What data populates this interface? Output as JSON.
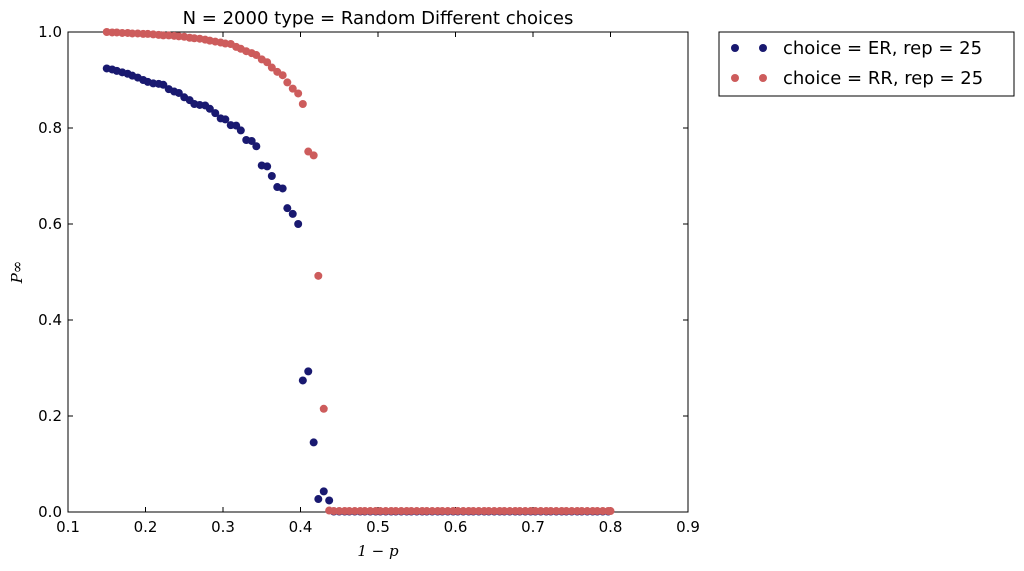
{
  "chart_data": {
    "type": "scatter",
    "title": "N = 2000 type = Random Different choices",
    "xlabel": "1 − p",
    "ylabel": "P∞",
    "xlim": [
      0.1,
      0.9
    ],
    "ylim": [
      0.0,
      1.0
    ],
    "xticks": [
      "0.1",
      "0.2",
      "0.3",
      "0.4",
      "0.5",
      "0.6",
      "0.7",
      "0.8",
      "0.9"
    ],
    "yticks": [
      "0.0",
      "0.2",
      "0.4",
      "0.6",
      "0.8",
      "1.0"
    ],
    "legend_position": "outside-top-right",
    "grid": false,
    "series": [
      {
        "name": "choice = ER, rep = 25",
        "color": "#191970",
        "points": [
          [
            0.15,
            0.924
          ],
          [
            0.157,
            0.922
          ],
          [
            0.163,
            0.919
          ],
          [
            0.17,
            0.916
          ],
          [
            0.177,
            0.913
          ],
          [
            0.183,
            0.909
          ],
          [
            0.19,
            0.905
          ],
          [
            0.197,
            0.9
          ],
          [
            0.203,
            0.896
          ],
          [
            0.21,
            0.893
          ],
          [
            0.217,
            0.892
          ],
          [
            0.223,
            0.89
          ],
          [
            0.23,
            0.881
          ],
          [
            0.237,
            0.876
          ],
          [
            0.243,
            0.873
          ],
          [
            0.25,
            0.864
          ],
          [
            0.257,
            0.858
          ],
          [
            0.263,
            0.85
          ],
          [
            0.27,
            0.848
          ],
          [
            0.277,
            0.847
          ],
          [
            0.283,
            0.84
          ],
          [
            0.29,
            0.831
          ],
          [
            0.297,
            0.82
          ],
          [
            0.303,
            0.818
          ],
          [
            0.31,
            0.806
          ],
          [
            0.317,
            0.805
          ],
          [
            0.323,
            0.795
          ],
          [
            0.33,
            0.775
          ],
          [
            0.337,
            0.773
          ],
          [
            0.343,
            0.762
          ],
          [
            0.35,
            0.722
          ],
          [
            0.357,
            0.72
          ],
          [
            0.363,
            0.7
          ],
          [
            0.37,
            0.677
          ],
          [
            0.377,
            0.674
          ],
          [
            0.383,
            0.633
          ],
          [
            0.39,
            0.621
          ],
          [
            0.397,
            0.6
          ],
          [
            0.403,
            0.274
          ],
          [
            0.41,
            0.293
          ],
          [
            0.417,
            0.145
          ],
          [
            0.423,
            0.027
          ],
          [
            0.43,
            0.043
          ],
          [
            0.437,
            0.024
          ],
          [
            0.443,
            0.001
          ],
          [
            0.45,
            0.001
          ],
          [
            0.457,
            0.001
          ],
          [
            0.463,
            0.001
          ],
          [
            0.47,
            0.001
          ],
          [
            0.477,
            0.001
          ],
          [
            0.483,
            0.001
          ],
          [
            0.49,
            0.001
          ],
          [
            0.497,
            0.001
          ],
          [
            0.503,
            0.001
          ],
          [
            0.51,
            0.001
          ],
          [
            0.517,
            0.001
          ],
          [
            0.523,
            0.001
          ],
          [
            0.53,
            0.001
          ],
          [
            0.537,
            0.001
          ],
          [
            0.543,
            0.001
          ],
          [
            0.55,
            0.001
          ],
          [
            0.557,
            0.001
          ],
          [
            0.563,
            0.001
          ],
          [
            0.57,
            0.001
          ],
          [
            0.577,
            0.001
          ],
          [
            0.583,
            0.001
          ],
          [
            0.59,
            0.001
          ],
          [
            0.597,
            0.001
          ],
          [
            0.603,
            0.001
          ],
          [
            0.61,
            0.001
          ],
          [
            0.617,
            0.001
          ],
          [
            0.623,
            0.001
          ],
          [
            0.63,
            0.001
          ],
          [
            0.637,
            0.001
          ],
          [
            0.643,
            0.001
          ],
          [
            0.65,
            0.001
          ],
          [
            0.657,
            0.001
          ],
          [
            0.663,
            0.001
          ],
          [
            0.67,
            0.001
          ],
          [
            0.677,
            0.001
          ],
          [
            0.683,
            0.001
          ],
          [
            0.69,
            0.001
          ],
          [
            0.697,
            0.001
          ],
          [
            0.703,
            0.001
          ],
          [
            0.71,
            0.001
          ],
          [
            0.717,
            0.001
          ],
          [
            0.723,
            0.001
          ],
          [
            0.73,
            0.001
          ],
          [
            0.737,
            0.001
          ],
          [
            0.743,
            0.001
          ],
          [
            0.75,
            0.001
          ],
          [
            0.757,
            0.001
          ],
          [
            0.763,
            0.001
          ],
          [
            0.77,
            0.001
          ],
          [
            0.777,
            0.001
          ],
          [
            0.783,
            0.001
          ],
          [
            0.79,
            0.001
          ],
          [
            0.797,
            0.001
          ]
        ]
      },
      {
        "name": "choice = RR, rep = 25",
        "color": "#CD5C5C",
        "points": [
          [
            0.15,
            1.0
          ],
          [
            0.157,
            0.999
          ],
          [
            0.163,
            0.999
          ],
          [
            0.17,
            0.998
          ],
          [
            0.177,
            0.998
          ],
          [
            0.183,
            0.997
          ],
          [
            0.19,
            0.997
          ],
          [
            0.197,
            0.996
          ],
          [
            0.203,
            0.996
          ],
          [
            0.21,
            0.995
          ],
          [
            0.217,
            0.994
          ],
          [
            0.223,
            0.993
          ],
          [
            0.23,
            0.993
          ],
          [
            0.237,
            0.992
          ],
          [
            0.243,
            0.991
          ],
          [
            0.25,
            0.99
          ],
          [
            0.257,
            0.988
          ],
          [
            0.263,
            0.987
          ],
          [
            0.27,
            0.986
          ],
          [
            0.277,
            0.984
          ],
          [
            0.283,
            0.982
          ],
          [
            0.29,
            0.98
          ],
          [
            0.297,
            0.978
          ],
          [
            0.303,
            0.976
          ],
          [
            0.31,
            0.975
          ],
          [
            0.317,
            0.969
          ],
          [
            0.323,
            0.965
          ],
          [
            0.33,
            0.96
          ],
          [
            0.337,
            0.956
          ],
          [
            0.343,
            0.952
          ],
          [
            0.35,
            0.943
          ],
          [
            0.357,
            0.937
          ],
          [
            0.363,
            0.926
          ],
          [
            0.37,
            0.917
          ],
          [
            0.377,
            0.91
          ],
          [
            0.383,
            0.895
          ],
          [
            0.39,
            0.882
          ],
          [
            0.397,
            0.872
          ],
          [
            0.403,
            0.85
          ],
          [
            0.41,
            0.751
          ],
          [
            0.417,
            0.743
          ],
          [
            0.423,
            0.492
          ],
          [
            0.43,
            0.215
          ],
          [
            0.437,
            0.003
          ],
          [
            0.443,
            0.002
          ],
          [
            0.45,
            0.002
          ],
          [
            0.457,
            0.002
          ],
          [
            0.463,
            0.002
          ],
          [
            0.47,
            0.002
          ],
          [
            0.477,
            0.002
          ],
          [
            0.483,
            0.002
          ],
          [
            0.49,
            0.002
          ],
          [
            0.497,
            0.002
          ],
          [
            0.503,
            0.002
          ],
          [
            0.51,
            0.002
          ],
          [
            0.517,
            0.002
          ],
          [
            0.523,
            0.002
          ],
          [
            0.53,
            0.002
          ],
          [
            0.537,
            0.002
          ],
          [
            0.543,
            0.002
          ],
          [
            0.55,
            0.002
          ],
          [
            0.557,
            0.002
          ],
          [
            0.563,
            0.002
          ],
          [
            0.57,
            0.002
          ],
          [
            0.577,
            0.002
          ],
          [
            0.583,
            0.002
          ],
          [
            0.59,
            0.002
          ],
          [
            0.597,
            0.002
          ],
          [
            0.603,
            0.002
          ],
          [
            0.61,
            0.002
          ],
          [
            0.617,
            0.002
          ],
          [
            0.623,
            0.002
          ],
          [
            0.63,
            0.002
          ],
          [
            0.637,
            0.002
          ],
          [
            0.643,
            0.002
          ],
          [
            0.65,
            0.002
          ],
          [
            0.657,
            0.002
          ],
          [
            0.663,
            0.002
          ],
          [
            0.67,
            0.002
          ],
          [
            0.677,
            0.002
          ],
          [
            0.683,
            0.002
          ],
          [
            0.69,
            0.002
          ],
          [
            0.697,
            0.002
          ],
          [
            0.703,
            0.002
          ],
          [
            0.71,
            0.002
          ],
          [
            0.717,
            0.002
          ],
          [
            0.723,
            0.002
          ],
          [
            0.73,
            0.002
          ],
          [
            0.737,
            0.002
          ],
          [
            0.743,
            0.002
          ],
          [
            0.75,
            0.002
          ],
          [
            0.757,
            0.002
          ],
          [
            0.763,
            0.002
          ],
          [
            0.77,
            0.002
          ],
          [
            0.777,
            0.002
          ],
          [
            0.783,
            0.002
          ],
          [
            0.79,
            0.002
          ],
          [
            0.797,
            0.002
          ],
          [
            0.8,
            0.002
          ]
        ]
      }
    ]
  }
}
